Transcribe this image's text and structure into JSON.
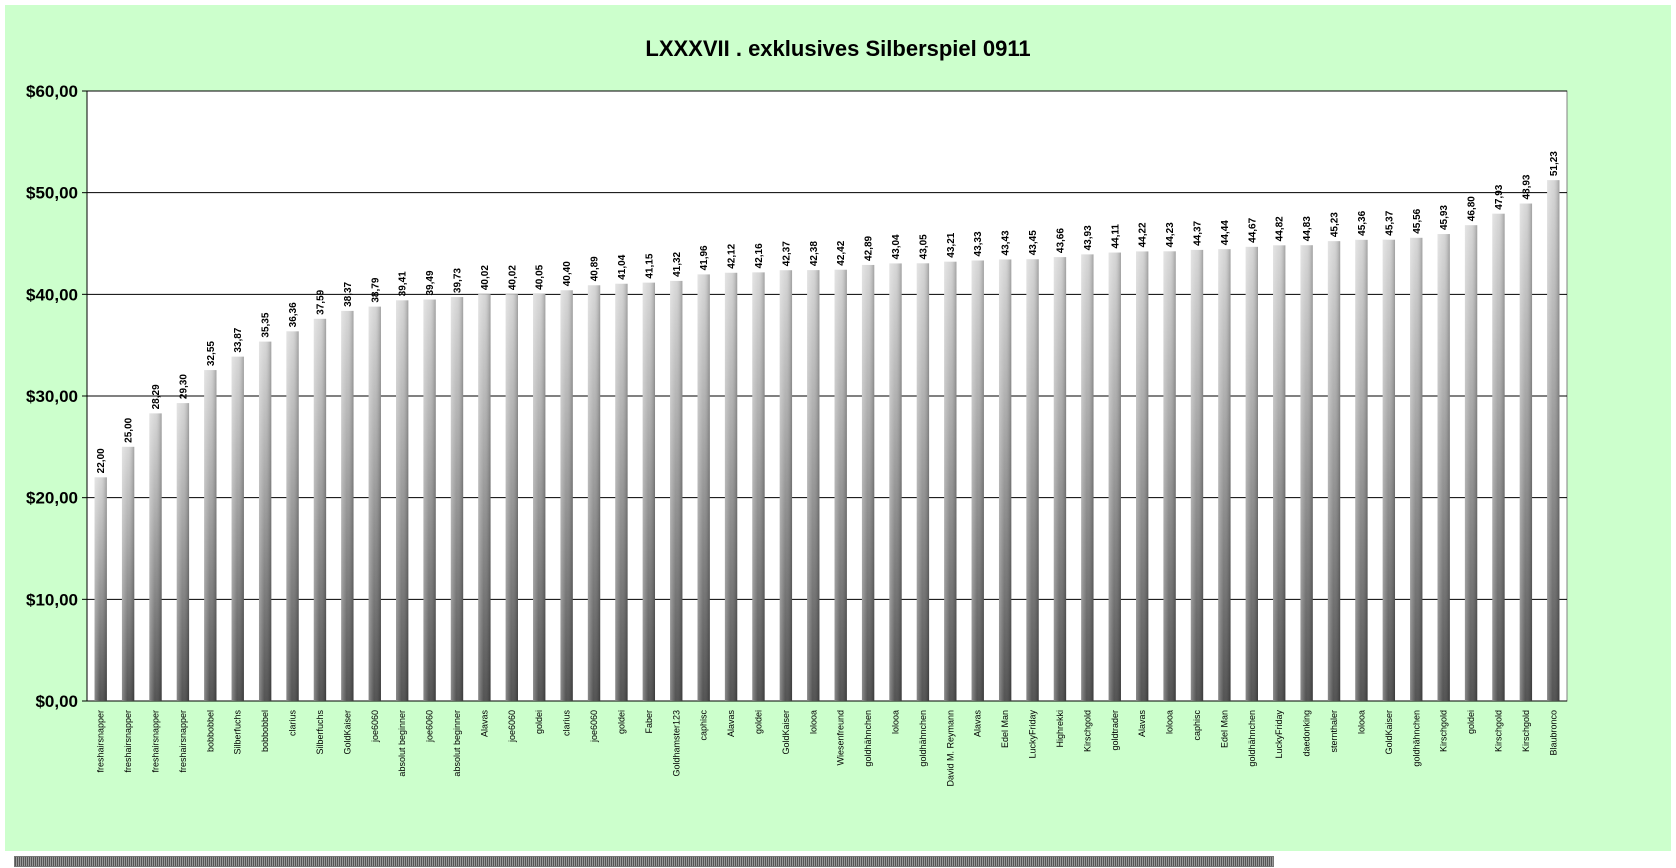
{
  "chart_data": {
    "type": "bar",
    "title": "LXXXVII . exklusives Silberspiel 0911",
    "xlabel": "",
    "ylabel": "",
    "ylim": [
      0,
      60
    ],
    "yticks": [
      "$0,00",
      "$10,00",
      "$20,00",
      "$30,00",
      "$40,00",
      "$50,00",
      "$60,00"
    ],
    "ytick_values": [
      0,
      10,
      20,
      30,
      40,
      50,
      60
    ],
    "grid": true,
    "categories": [
      "freshairsnapper",
      "freshairsnapper",
      "freshairsnapper",
      "freshairsnapper",
      "bobbobbel",
      "Silberfuchs",
      "bobbobbel",
      "clarius",
      "Silberfuchs",
      "GoldKaiser",
      "joe6060",
      "absolut beginner",
      "joe6060",
      "absolut beginner",
      "Alavas",
      "joe6060",
      "goldei",
      "clarius",
      "joe6060",
      "goldei",
      "Faber",
      "Goldhamster123",
      "caphisc",
      "Alavas",
      "goldei",
      "GoldKaiser",
      "lolooa",
      "Wiesenfreund",
      "goldhähnchen",
      "lolooa",
      "goldhähnchen",
      "David M. Reymann",
      "Alavas",
      "Edel Man",
      "LuckyFriday",
      "Highrekki",
      "Kirschgold",
      "goldtrader",
      "Alavas",
      "lolooa",
      "caphisc",
      "Edel Man",
      "goldhähnchen",
      "LuckyFriday",
      "daedonking",
      "sternthaler",
      "lolooa",
      "GoldKaiser",
      "goldhähnchen",
      "Kirschgold",
      "goldei",
      "Kirschgold",
      "Kirschgold",
      "Blaubronco"
    ],
    "values": [
      22.0,
      25.0,
      28.29,
      29.3,
      32.55,
      33.87,
      35.35,
      36.36,
      37.59,
      38.37,
      38.79,
      39.41,
      39.49,
      39.73,
      40.02,
      40.02,
      40.05,
      40.4,
      40.89,
      41.04,
      41.15,
      41.32,
      41.96,
      42.12,
      42.16,
      42.37,
      42.38,
      42.42,
      42.89,
      43.04,
      43.05,
      43.21,
      43.33,
      43.43,
      43.45,
      43.66,
      43.93,
      44.11,
      44.22,
      44.23,
      44.37,
      44.44,
      44.67,
      44.82,
      44.83,
      45.23,
      45.36,
      45.37,
      45.56,
      45.93,
      46.8,
      47.93,
      48.93,
      51.23
    ],
    "value_labels": [
      "22,00",
      "25,00",
      "28,29",
      "29,30",
      "32,55",
      "33,87",
      "35,35",
      "36,36",
      "37,59",
      "38,37",
      "38,79",
      "39,41",
      "39,49",
      "39,73",
      "40,02",
      "40,02",
      "40,05",
      "40,40",
      "40,89",
      "41,04",
      "41,15",
      "41,32",
      "41,96",
      "42,12",
      "42,16",
      "42,37",
      "42,38",
      "42,42",
      "42,89",
      "43,04",
      "43,05",
      "43,21",
      "43,33",
      "43,43",
      "43,45",
      "43,66",
      "43,93",
      "44,11",
      "44,22",
      "44,23",
      "44,37",
      "44,44",
      "44,67",
      "44,82",
      "44,83",
      "45,23",
      "45,36",
      "45,37",
      "45,56",
      "45,93",
      "46,80",
      "47,93",
      "48,93",
      "51,23"
    ]
  },
  "colors": {
    "background": "#ccffcc",
    "plot_area": "#ffffff",
    "grid": "#000000",
    "bar_light": "#d4d4d4",
    "bar_dark": "#555555"
  }
}
